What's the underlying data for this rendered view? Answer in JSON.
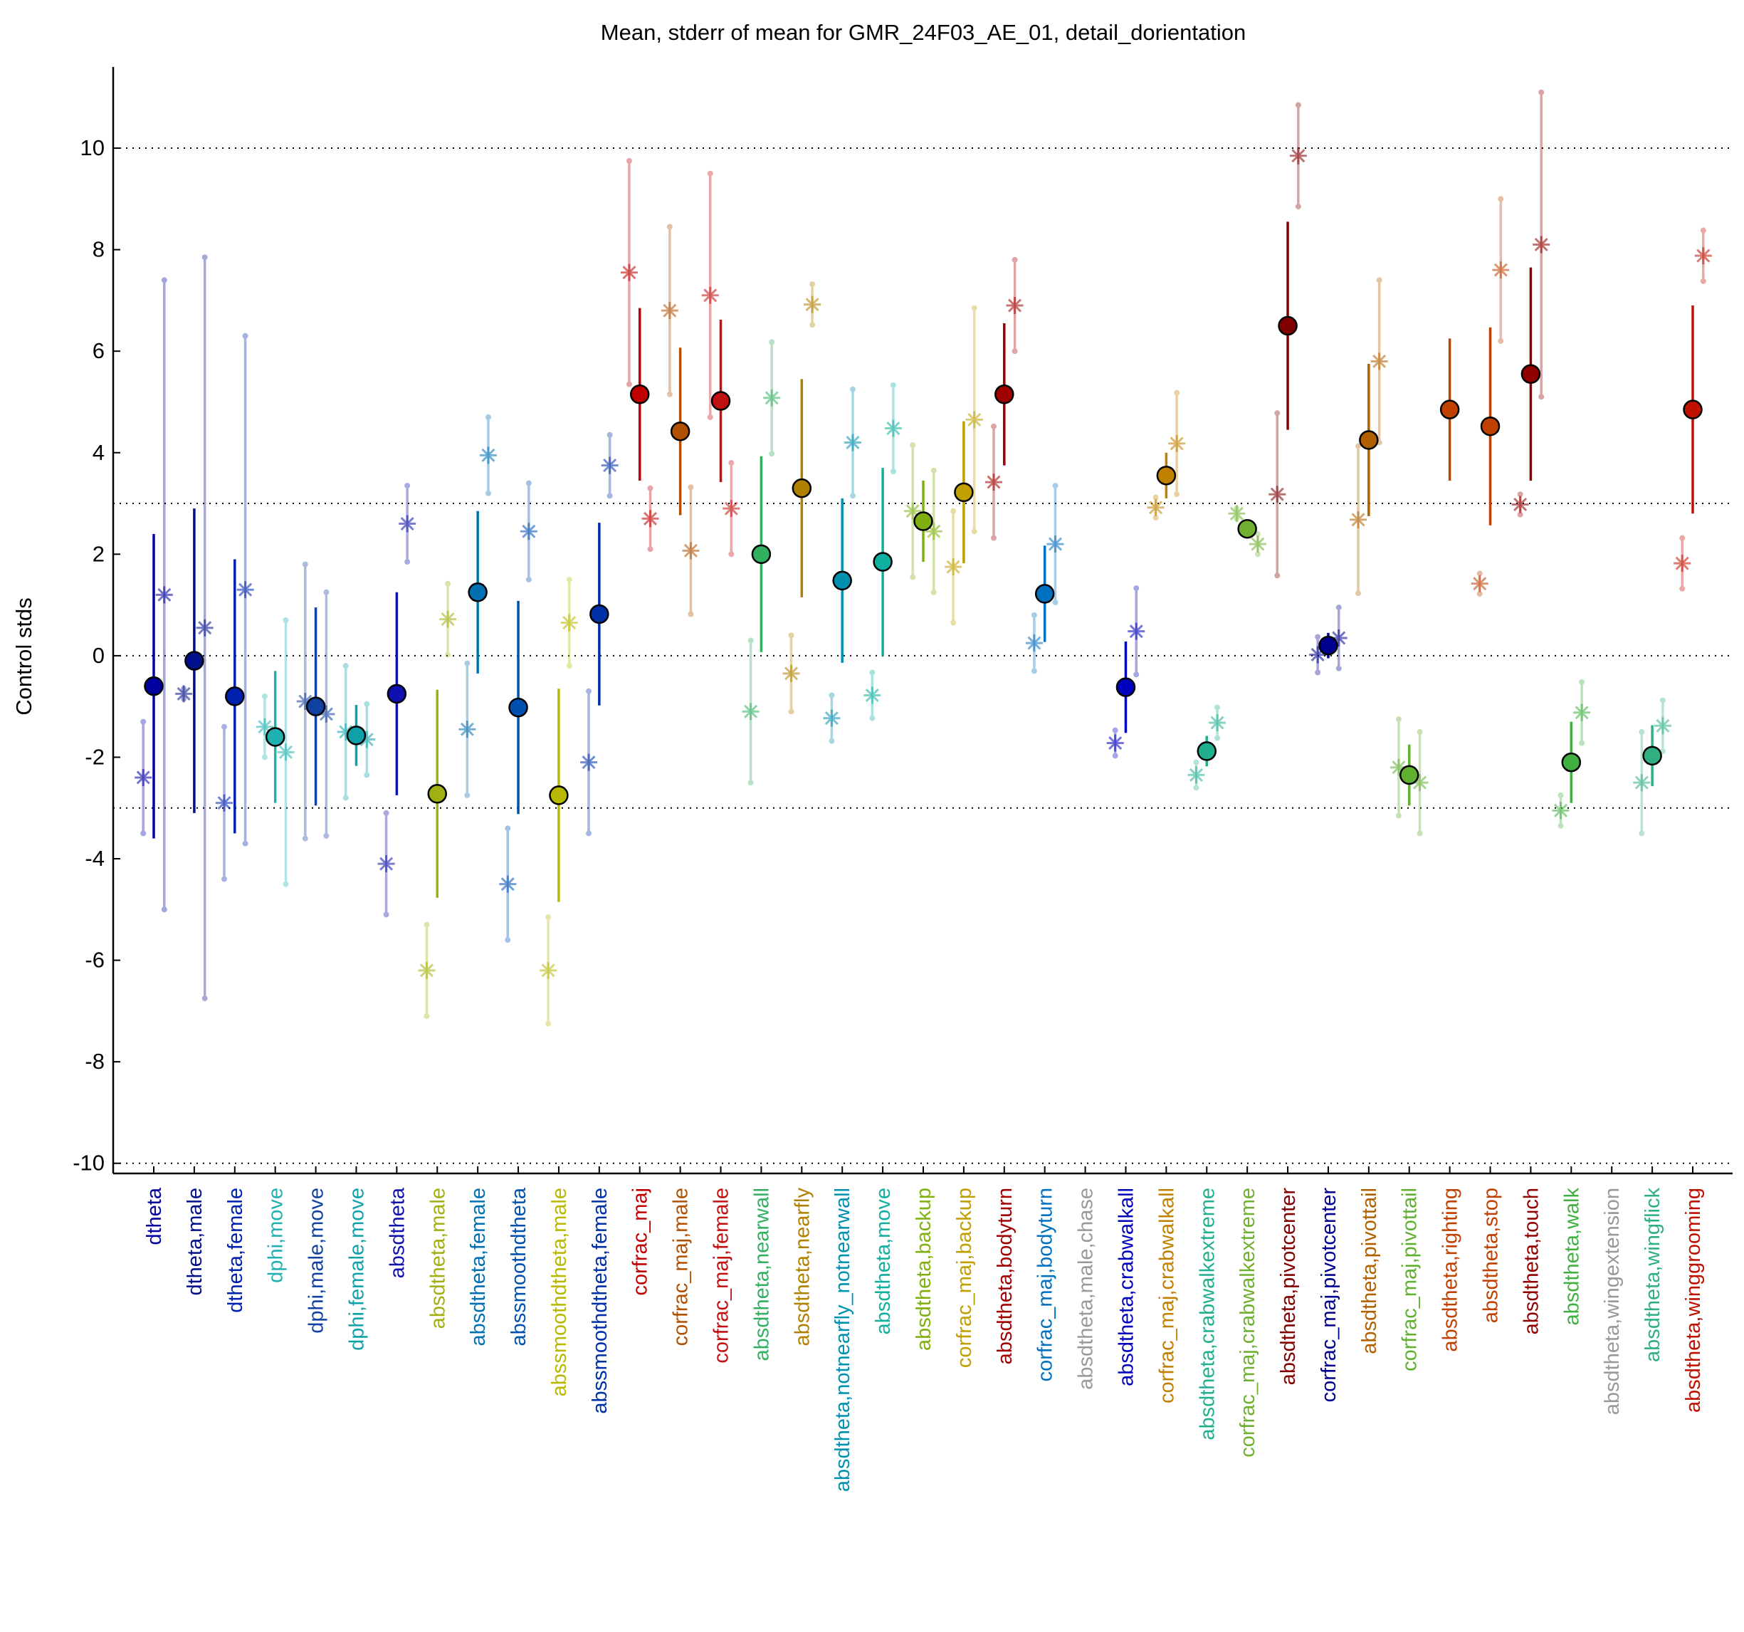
{
  "chart_data": {
    "type": "errorbar",
    "title": "Mean, stderr of mean for GMR_24F03_AE_01, detail_dorientation",
    "ylabel": "Control stds",
    "categories": [
      "dtheta",
      "dtheta,male",
      "dtheta,female",
      "dphi,move",
      "dphi,male,move",
      "dphi,female,move",
      "absdtheta",
      "absdtheta,male",
      "absdtheta,female",
      "abssmoothdtheta",
      "abssmoothdtheta,male",
      "abssmoothdtheta,female",
      "corfrac_maj",
      "corfrac_maj,male",
      "corfrac_maj,female",
      "absdtheta,nearwall",
      "absdtheta,nearfly",
      "absdtheta,notnearfly_notnearwall",
      "absdtheta,move",
      "absdtheta,backup",
      "corfrac_maj,backup",
      "absdtheta,bodyturn",
      "corfrac_maj,bodyturn",
      "absdtheta,male,chase",
      "absdtheta,crabwalkall",
      "corfrac_maj,crabwalkall",
      "absdtheta,crabwalkextreme",
      "corfrac_maj,crabwalkextreme",
      "absdtheta,pivotcenter",
      "corfrac_maj,pivotcenter",
      "absdtheta,pivottail",
      "corfrac_maj,pivottail",
      "absdtheta,righting",
      "absdtheta,stop",
      "absdtheta,touch",
      "absdtheta,walk",
      "absdtheta,wingextension",
      "absdtheta,wingflick",
      "absdtheta,winggrooming"
    ],
    "colors": [
      "#0000a0",
      "#00108a",
      "#0020b0",
      "#20b0b0",
      "#1040a0",
      "#10a0a8",
      "#1010b0",
      "#a0b010",
      "#0070b0",
      "#0050b0",
      "#b8b800",
      "#0030a8",
      "#c00000",
      "#b05000",
      "#c01010",
      "#30b060",
      "#b08000",
      "#0090b0",
      "#10b0a0",
      "#80b010",
      "#c0a000",
      "#a00000",
      "#0070c0",
      "#999999",
      "#0000c0",
      "#c08000",
      "#20b090",
      "#70b030",
      "#800000",
      "#000090",
      "#b06000",
      "#60b030",
      "#c04000",
      "#c04000",
      "#900000",
      "#40b040",
      "#999999",
      "#30b080",
      "#c01000"
    ],
    "series": [
      {
        "marker": "circle",
        "values": [
          -0.6,
          -0.1,
          -0.8,
          -1.6,
          -1.0,
          -1.57,
          -0.75,
          -2.72,
          1.25,
          -1.02,
          -2.75,
          0.82,
          5.15,
          4.42,
          5.02,
          2.0,
          3.3,
          1.48,
          1.85,
          2.65,
          3.22,
          5.15,
          1.22,
          null,
          -0.62,
          3.55,
          -1.88,
          2.5,
          6.5,
          0.2,
          4.25,
          -2.35,
          4.85,
          4.52,
          5.55,
          -2.1,
          null,
          -1.97,
          4.85
        ],
        "errors": [
          3.0,
          3.0,
          2.7,
          1.3,
          1.95,
          0.6,
          2.0,
          2.05,
          1.6,
          2.1,
          2.1,
          1.8,
          1.7,
          1.65,
          1.6,
          1.93,
          2.15,
          1.62,
          1.85,
          0.8,
          1.4,
          1.4,
          0.95,
          null,
          0.9,
          0.45,
          0.3,
          0.1,
          2.05,
          0.25,
          1.5,
          0.6,
          1.4,
          1.95,
          2.1,
          0.8,
          null,
          0.6,
          2.05
        ]
      },
      {
        "marker": "asterisk",
        "values": [
          -2.4,
          -0.75,
          -2.9,
          -1.4,
          -0.9,
          -1.5,
          -4.1,
          -6.2,
          -1.45,
          -4.5,
          -6.2,
          -2.1,
          7.55,
          6.8,
          7.1,
          -1.1,
          -0.35,
          -1.23,
          -0.78,
          2.85,
          1.75,
          3.42,
          0.25,
          null,
          -1.72,
          2.92,
          -2.35,
          2.8,
          3.18,
          0.02,
          2.68,
          -2.2,
          null,
          1.42,
          2.98,
          -3.05,
          null,
          -2.5,
          1.82
        ],
        "errors": [
          1.1,
          0.1,
          1.5,
          0.6,
          2.7,
          1.3,
          1.0,
          0.9,
          1.3,
          1.1,
          1.05,
          1.4,
          2.2,
          1.65,
          2.4,
          1.4,
          0.75,
          0.45,
          0.45,
          1.3,
          1.1,
          1.1,
          0.55,
          null,
          0.25,
          0.2,
          0.25,
          0.1,
          1.6,
          0.35,
          1.45,
          0.95,
          null,
          0.2,
          0.2,
          0.3,
          null,
          1.0,
          0.5
        ]
      },
      {
        "marker": "asterisk",
        "values": [
          1.2,
          0.55,
          1.3,
          -1.9,
          -1.15,
          -1.65,
          2.6,
          0.72,
          3.95,
          2.45,
          0.65,
          3.75,
          2.7,
          2.07,
          2.9,
          5.08,
          6.92,
          4.2,
          4.48,
          2.45,
          4.65,
          6.9,
          2.2,
          null,
          0.48,
          4.18,
          -1.32,
          2.2,
          9.85,
          0.35,
          5.8,
          -2.5,
          null,
          7.6,
          8.1,
          -1.12,
          null,
          -1.38,
          7.88
        ],
        "errors": [
          6.2,
          7.3,
          5.0,
          2.6,
          2.4,
          0.7,
          0.75,
          0.7,
          0.75,
          0.95,
          0.85,
          0.6,
          0.6,
          1.25,
          0.9,
          1.1,
          0.4,
          1.05,
          0.85,
          1.2,
          2.2,
          0.9,
          1.15,
          null,
          0.85,
          1.0,
          0.3,
          0.2,
          1.0,
          0.6,
          1.6,
          1.0,
          null,
          1.4,
          3.0,
          0.6,
          null,
          0.5,
          0.5
        ]
      }
    ],
    "ylim": [
      -10.2,
      11.6
    ],
    "yticks": [
      -10,
      -8,
      -6,
      -4,
      -2,
      0,
      2,
      4,
      6,
      8,
      10
    ],
    "reference_lines": [
      -10,
      -3,
      0,
      3,
      10
    ]
  }
}
